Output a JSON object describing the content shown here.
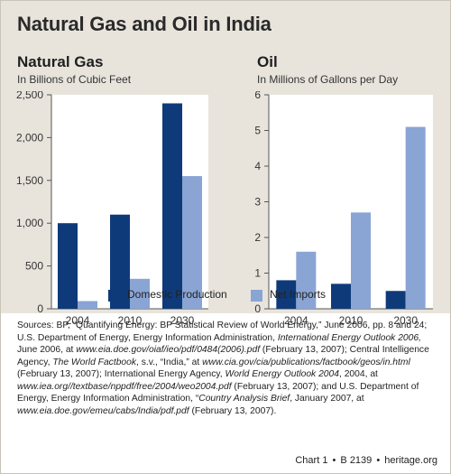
{
  "page": {
    "title": "Natural Gas and Oil in India"
  },
  "colors": {
    "domestic": "#0f3a7a",
    "imports": "#8aa4d4",
    "panel_bg": "#e8e4dc",
    "plot_bg": "#ffffff"
  },
  "legend": [
    {
      "name": "Domestic Production",
      "color": "#0f3a7a"
    },
    {
      "name": "Net Imports",
      "color": "#8aa4d4"
    }
  ],
  "chart_data": [
    {
      "type": "bar",
      "title": "Natural Gas",
      "subtitle": "In Billions of Cubic Feet",
      "categories": [
        "2004",
        "2010",
        "2030"
      ],
      "series": [
        {
          "name": "Domestic Production",
          "values": [
            1000,
            1100,
            2400
          ]
        },
        {
          "name": "Net Imports",
          "values": [
            90,
            350,
            1550
          ]
        }
      ],
      "ylim": [
        0,
        2500
      ],
      "yticks": [
        0,
        500,
        1000,
        1500,
        2000,
        2500
      ],
      "ytick_labels": [
        "0",
        "500",
        "1,000",
        "1,500",
        "2,000",
        "2,500"
      ],
      "grid": false
    },
    {
      "type": "bar",
      "title": "Oil",
      "subtitle": "In Millions of Gallons per Day",
      "categories": [
        "2004",
        "2010",
        "2030"
      ],
      "series": [
        {
          "name": "Domestic Production",
          "values": [
            0.8,
            0.7,
            0.5
          ]
        },
        {
          "name": "Net Imports",
          "values": [
            1.6,
            2.7,
            5.1
          ]
        }
      ],
      "ylim": [
        0,
        6
      ],
      "yticks": [
        0,
        1,
        2,
        3,
        4,
        5,
        6
      ],
      "ytick_labels": [
        "0",
        "1",
        "2",
        "3",
        "4",
        "5",
        "6"
      ],
      "grid": false
    }
  ],
  "sources": [
    {
      "text": "Sources: BP, “Quantifying Energy: BP Statistical Review of World Energy,” June 2006, pp. 8 and 24; U.S. Department of Energy, Energy Information Administration, ",
      "italic": false
    },
    {
      "text": "International Energy Outlook 2006,",
      "italic": true
    },
    {
      "text": " June 2006, at ",
      "italic": false
    },
    {
      "text": "www.eia.doe.gov/oiaf/ieo/pdf/0484(2006).pdf",
      "italic": true
    },
    {
      "text": " (February 13, 2007); Central Intelligence Agency, ",
      "italic": false
    },
    {
      "text": "The World Factbook",
      "italic": true
    },
    {
      "text": ", s.v., “India,” at ",
      "italic": false
    },
    {
      "text": "www.cia.gov/cia/publications/factbook/geos/in.html",
      "italic": true
    },
    {
      "text": " (February 13, 2007); International Energy Agency, ",
      "italic": false
    },
    {
      "text": "World Energy Outlook 2004",
      "italic": true
    },
    {
      "text": ", 2004, at ",
      "italic": false
    },
    {
      "text": "www.iea.org//textbase/nppdf/free/2004/weo2004.pdf",
      "italic": true
    },
    {
      "text": " (February 13, 2007); and U.S. Department of Energy, Energy Information Administration, “",
      "italic": false
    },
    {
      "text": "Country Analysis Brief",
      "italic": true
    },
    {
      "text": ", January 2007, at ",
      "italic": false
    },
    {
      "text": "www.eia.doe.gov/emeu/cabs/India/pdf.pdf",
      "italic": true
    },
    {
      "text": " (February 13, 2007).",
      "italic": false
    }
  ],
  "footer": {
    "chart_label": "Chart 1",
    "report_id": "B 2139",
    "site": "heritage.org",
    "separator": "•"
  }
}
